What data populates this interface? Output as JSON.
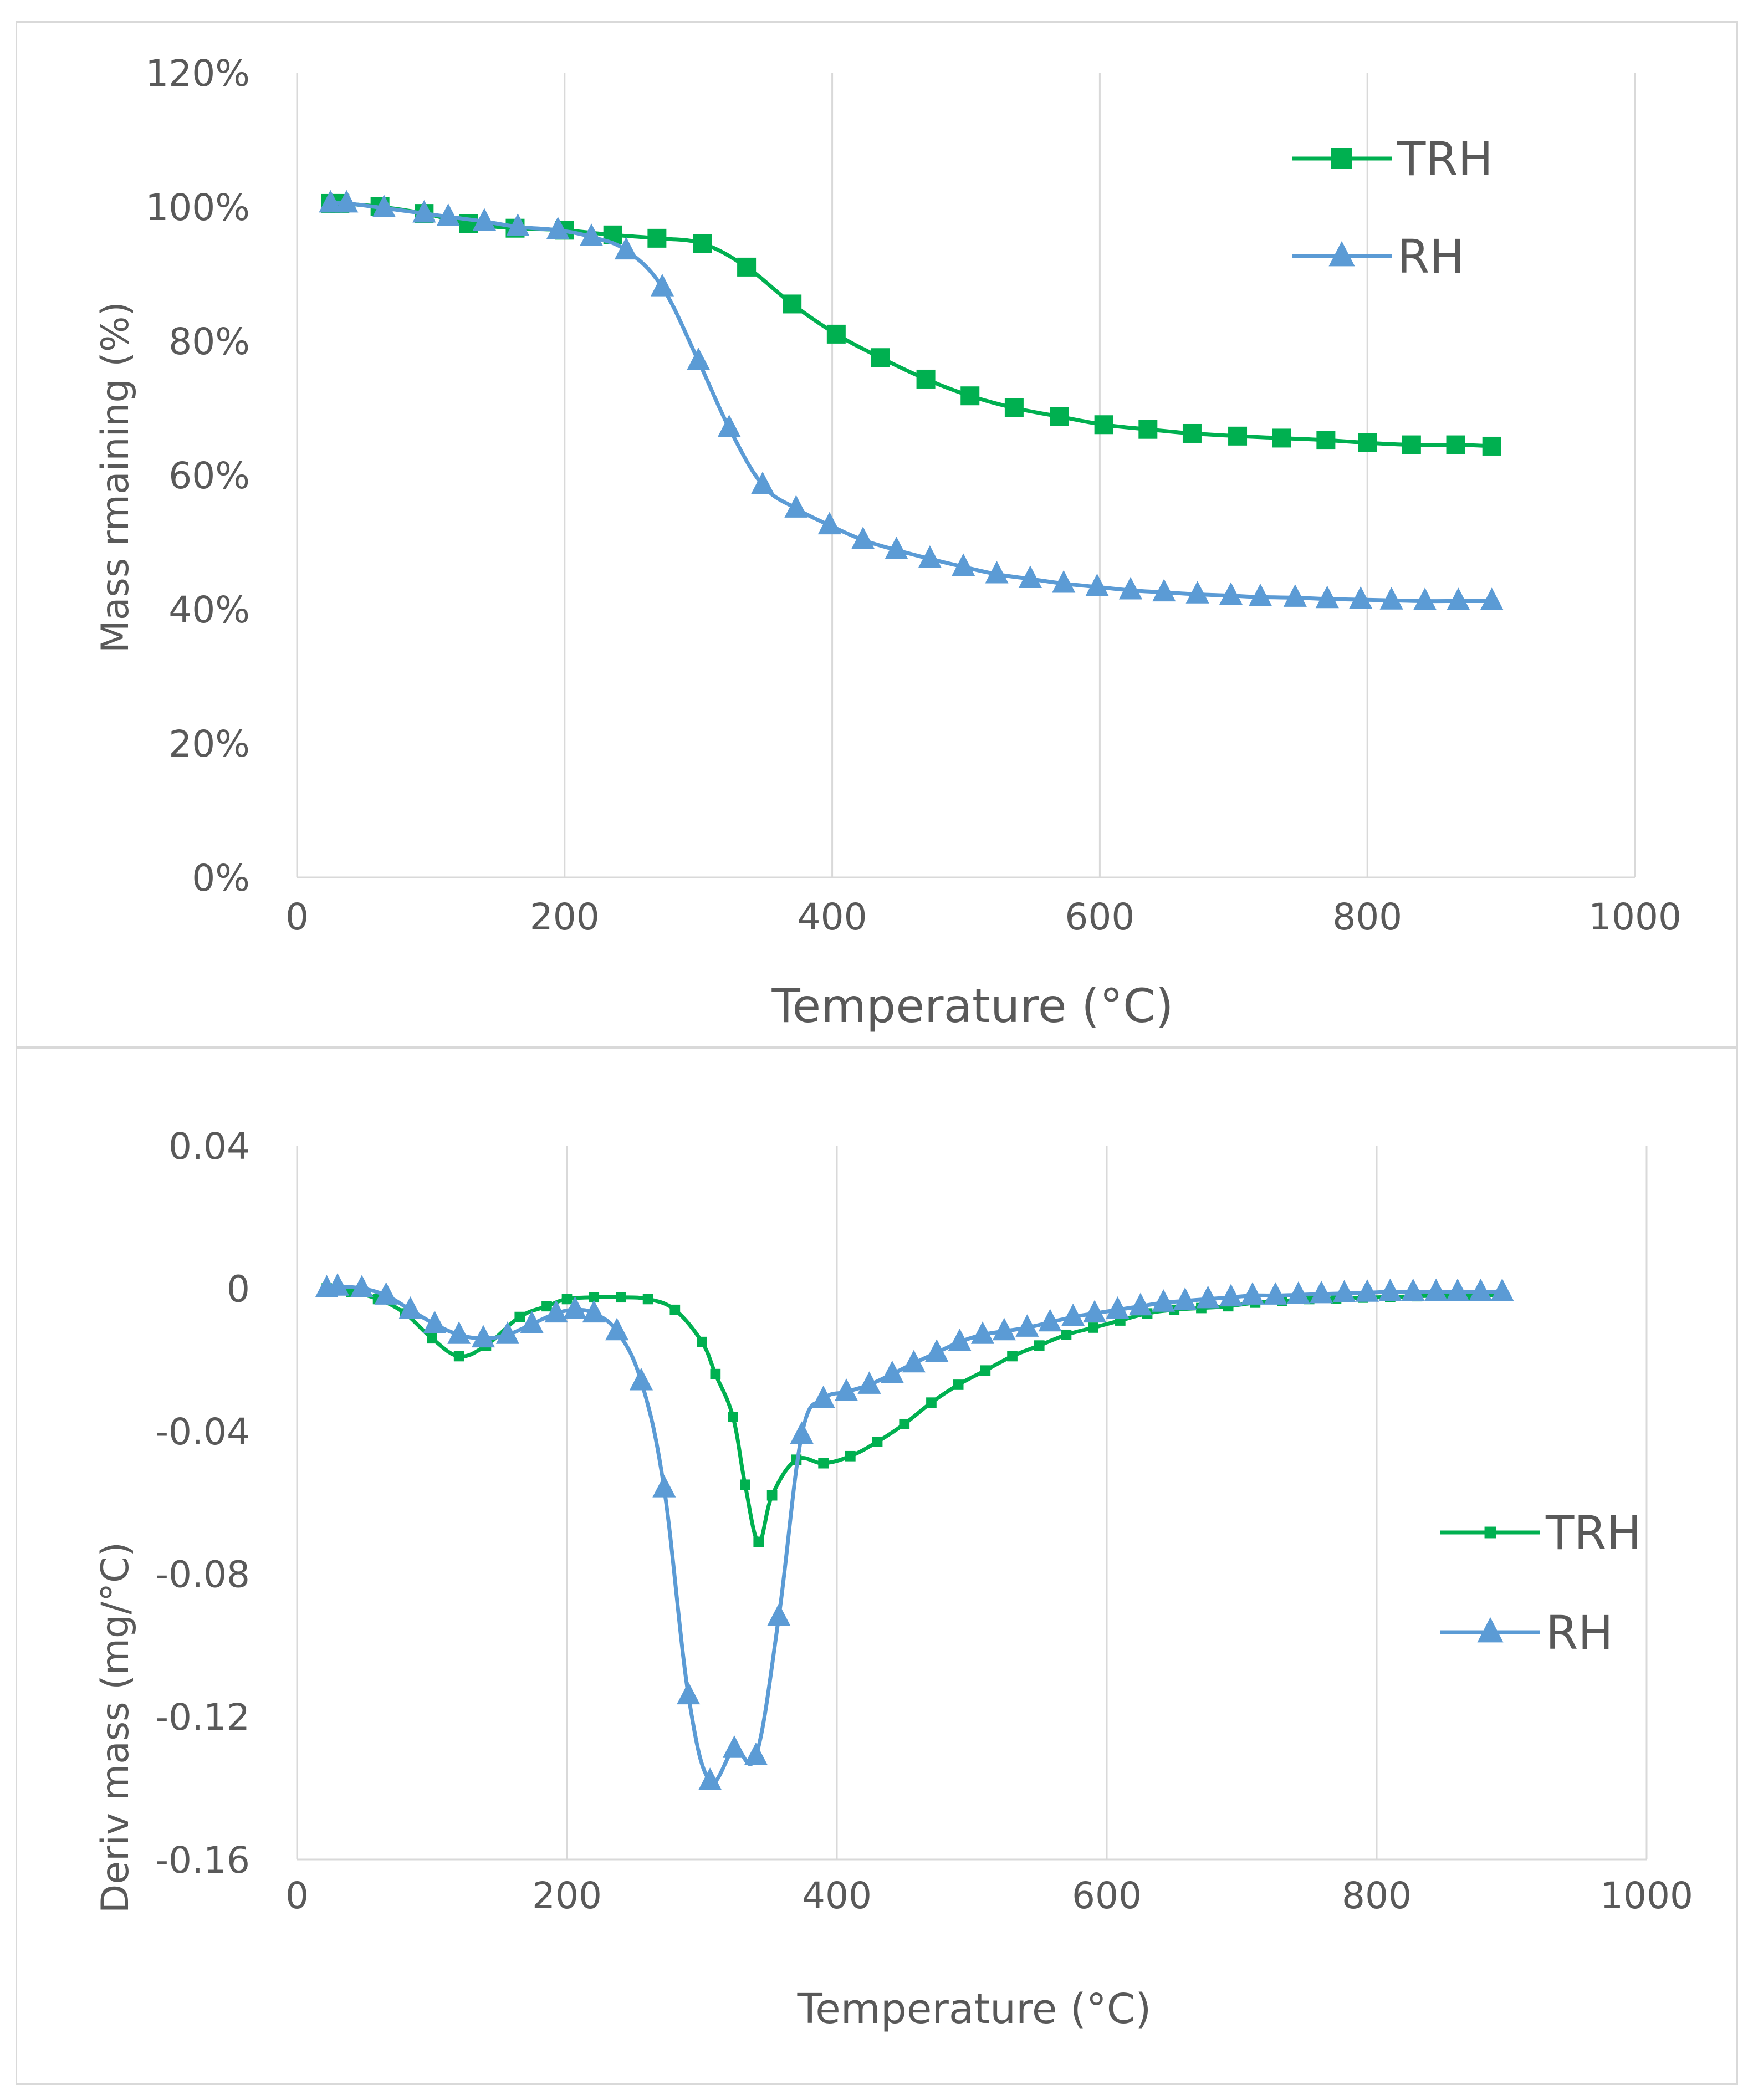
{
  "chart_data": [
    {
      "type": "line",
      "title": "",
      "xlabel": "Temperature (°C)",
      "ylabel": "Mass rmaining (%)",
      "xlim": [
        0,
        1000
      ],
      "ylim": [
        0,
        120
      ],
      "x_ticks": [
        0,
        200,
        400,
        600,
        800,
        1000
      ],
      "x_tick_labels": [
        "0",
        "200",
        "400",
        "600",
        "800",
        "1000"
      ],
      "y_ticks": [
        0,
        20,
        40,
        60,
        80,
        100,
        120
      ],
      "y_tick_labels": [
        "0%",
        "20%",
        "40%",
        "60%",
        "80%",
        "100%",
        "120%"
      ],
      "grid": "vertical",
      "legend": "top-right",
      "series": [
        {
          "name": "TRH",
          "color": "#00b050",
          "marker": "square",
          "x": [
            25,
            32,
            62,
            95,
            128,
            163,
            200,
            236,
            269,
            303,
            336,
            370,
            403,
            436,
            470,
            503,
            536,
            570,
            603,
            636,
            669,
            703,
            736,
            769,
            800,
            833,
            866,
            893
          ],
          "y": [
            100.5,
            100.5,
            100,
            99,
            97.5,
            96.8,
            96.5,
            95.8,
            95.3,
            94.5,
            91,
            85.5,
            81,
            77.5,
            74.3,
            71.8,
            70,
            68.7,
            67.5,
            66.8,
            66.2,
            65.8,
            65.5,
            65.2,
            64.8,
            64.5,
            64.5,
            64.3
          ]
        },
        {
          "name": "RH",
          "color": "#5b9bd5",
          "marker": "triangle",
          "x": [
            25,
            37,
            65,
            95,
            113,
            140,
            165,
            195,
            220,
            246,
            273,
            300,
            323,
            348,
            373,
            398,
            423,
            448,
            473,
            498,
            523,
            548,
            573,
            598,
            623,
            648,
            673,
            698,
            720,
            746,
            770,
            795,
            818,
            843,
            868,
            893
          ],
          "y": [
            100.5,
            100.5,
            99.8,
            99,
            98.5,
            97.8,
            97,
            96.5,
            95.5,
            93.5,
            88,
            77,
            67,
            58.5,
            55,
            52.5,
            50.3,
            48.8,
            47.5,
            46.3,
            45.2,
            44.5,
            43.8,
            43.3,
            42.8,
            42.5,
            42.2,
            42,
            41.8,
            41.7,
            41.5,
            41.4,
            41.3,
            41.2,
            41.2,
            41.2
          ]
        }
      ]
    },
    {
      "type": "line",
      "title": "",
      "xlabel": "Temperature (°C)",
      "ylabel": "Deriv mass (mg/°C)",
      "xlim": [
        0,
        1000
      ],
      "ylim": [
        -0.16,
        0.04
      ],
      "x_ticks": [
        0,
        200,
        400,
        600,
        800,
        1000
      ],
      "x_tick_labels": [
        "0",
        "200",
        "400",
        "600",
        "800",
        "1000"
      ],
      "y_ticks": [
        0.04,
        0,
        -0.04,
        -0.08,
        -0.12,
        -0.16
      ],
      "y_tick_labels": [
        "0.04",
        "0",
        "-0.04",
        "-0.08",
        "-0.12",
        "-0.16"
      ],
      "grid": "vertical",
      "legend": "right",
      "series": [
        {
          "name": "TRH",
          "color": "#00b050",
          "marker": "small-square",
          "x": [
            22,
            40,
            60,
            80,
            100,
            120,
            140,
            165,
            185,
            200,
            220,
            240,
            260,
            280,
            300,
            310,
            323,
            332,
            342,
            352,
            370,
            390,
            410,
            430,
            450,
            470,
            490,
            510,
            530,
            550,
            570,
            590,
            610,
            630,
            650,
            670,
            690,
            710,
            730,
            750,
            770,
            790,
            810,
            830,
            850,
            870,
            893
          ],
          "y": [
            0,
            -0.001,
            -0.003,
            -0.007,
            -0.014,
            -0.019,
            -0.016,
            -0.008,
            -0.005,
            -0.003,
            -0.0025,
            -0.0025,
            -0.003,
            -0.006,
            -0.015,
            -0.024,
            -0.036,
            -0.055,
            -0.071,
            -0.058,
            -0.048,
            -0.049,
            -0.047,
            -0.043,
            -0.038,
            -0.032,
            -0.027,
            -0.023,
            -0.019,
            -0.016,
            -0.013,
            -0.011,
            -0.009,
            -0.007,
            -0.006,
            -0.0055,
            -0.005,
            -0.004,
            -0.0035,
            -0.003,
            -0.0028,
            -0.0026,
            -0.0024,
            -0.0022,
            -0.002,
            -0.002,
            -0.002
          ]
        },
        {
          "name": "RH",
          "color": "#5b9bd5",
          "marker": "triangle",
          "x": [
            22,
            30,
            48,
            66,
            84,
            102,
            120,
            138,
            156,
            174,
            192,
            206,
            220,
            237,
            255,
            272,
            290,
            306,
            324,
            340,
            357,
            374,
            390,
            407,
            424,
            441,
            457,
            474,
            491,
            508,
            524,
            541,
            558,
            575,
            591,
            608,
            625,
            642,
            658,
            675,
            692,
            708,
            725,
            742,
            759,
            776,
            793,
            810,
            827,
            844,
            860,
            877,
            893
          ],
          "y": [
            0,
            0.0005,
            0,
            -0.002,
            -0.006,
            -0.01,
            -0.013,
            -0.014,
            -0.013,
            -0.01,
            -0.007,
            -0.006,
            -0.007,
            -0.012,
            -0.026,
            -0.056,
            -0.114,
            -0.138,
            -0.129,
            -0.131,
            -0.092,
            -0.041,
            -0.031,
            -0.029,
            -0.027,
            -0.024,
            -0.021,
            -0.018,
            -0.015,
            -0.013,
            -0.012,
            -0.011,
            -0.0095,
            -0.008,
            -0.007,
            -0.006,
            -0.005,
            -0.004,
            -0.0035,
            -0.003,
            -0.0025,
            -0.002,
            -0.002,
            -0.0018,
            -0.0016,
            -0.0014,
            -0.0012,
            -0.001,
            -0.001,
            -0.001,
            -0.001,
            -0.001,
            -0.001
          ]
        }
      ]
    }
  ]
}
